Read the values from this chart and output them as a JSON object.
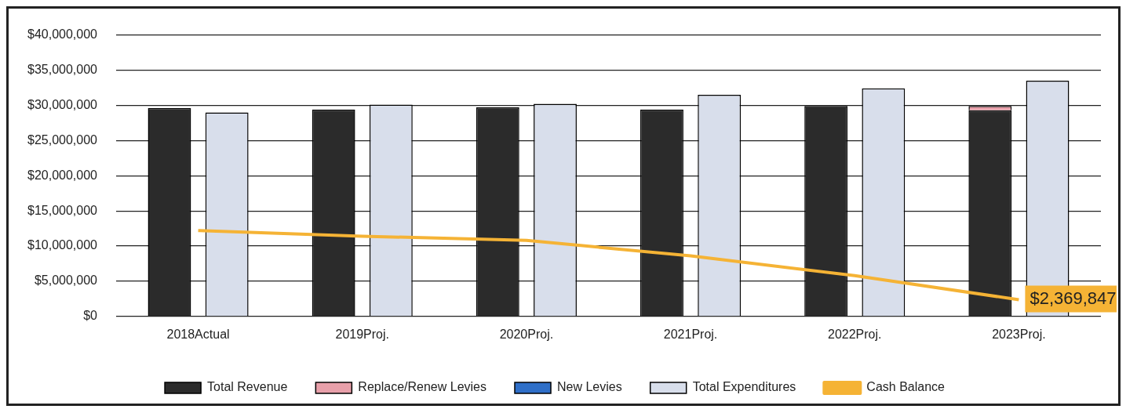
{
  "chart_data": {
    "type": "bar",
    "categories": [
      "2018Actual",
      "2019Proj.",
      "2020Proj.",
      "2021Proj.",
      "2022Proj.",
      "2023Proj."
    ],
    "series": [
      {
        "name": "Total Revenue",
        "color": "#2b2b2b",
        "values": [
          29600000,
          29400000,
          29700000,
          29400000,
          29900000,
          29300000
        ]
      },
      {
        "name": "Replace/Renew Levies",
        "color": "#e8a0aa",
        "base": [
          null,
          null,
          null,
          null,
          null,
          29300000
        ],
        "values": [
          null,
          null,
          null,
          null,
          null,
          600000
        ]
      },
      {
        "name": "New Levies",
        "color": "#2f6fc8",
        "values": [
          null,
          null,
          null,
          null,
          null,
          null
        ]
      },
      {
        "name": "Total Expenditures",
        "color": "#d8deeb",
        "values": [
          29000000,
          30100000,
          30200000,
          31500000,
          32400000,
          33500000
        ]
      },
      {
        "name": "Cash Balance",
        "type": "line",
        "color": "#f5b335",
        "values": [
          12200000,
          11400000,
          10800000,
          8600000,
          5800000,
          2369847
        ],
        "value_labels": [
          null,
          null,
          null,
          null,
          null,
          "$2,369,847"
        ]
      }
    ],
    "ylim": [
      0,
      40000000
    ],
    "yticks": [
      {
        "value": 0,
        "label": "$0"
      },
      {
        "value": 5000000,
        "label": "$5,000,000"
      },
      {
        "value": 10000000,
        "label": "$10,000,000"
      },
      {
        "value": 15000000,
        "label": "$15,000,000"
      },
      {
        "value": 20000000,
        "label": "$20,000,000"
      },
      {
        "value": 25000000,
        "label": "$25,000,000"
      },
      {
        "value": 30000000,
        "label": "$30,000,000"
      },
      {
        "value": 35000000,
        "label": "$35,000,000"
      },
      {
        "value": 40000000,
        "label": "$40,000,000"
      }
    ],
    "grid": "y",
    "legend": "bottom",
    "marker": "none"
  }
}
